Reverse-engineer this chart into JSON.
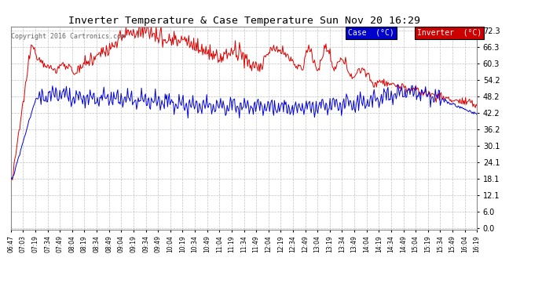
{
  "title": "Inverter Temperature & Case Temperature Sun Nov 20 16:29",
  "copyright": "Copyright 2016 Cartronics.com",
  "background_color": "#ffffff",
  "plot_bg_color": "#ffffff",
  "grid_color": "#bbbbbb",
  "yticks": [
    0.0,
    6.0,
    12.1,
    18.1,
    24.1,
    30.1,
    36.2,
    42.2,
    48.2,
    54.2,
    60.3,
    66.3,
    72.3
  ],
  "ymin": 0.0,
  "ymax": 72.3,
  "case_color": "#0000dd",
  "inverter_color": "#dd0000",
  "legend_case_bg": "#0000cc",
  "legend_inverter_bg": "#cc0000",
  "xtick_labels": [
    "06:47",
    "07:03",
    "07:19",
    "07:34",
    "07:49",
    "08:04",
    "08:19",
    "08:34",
    "08:49",
    "09:04",
    "09:19",
    "09:34",
    "09:49",
    "10:04",
    "10:19",
    "10:34",
    "10:49",
    "11:04",
    "11:19",
    "11:34",
    "11:49",
    "12:04",
    "12:19",
    "12:34",
    "12:49",
    "13:04",
    "13:19",
    "13:34",
    "13:49",
    "14:04",
    "14:19",
    "14:34",
    "14:49",
    "15:04",
    "15:19",
    "15:34",
    "15:49",
    "16:04",
    "16:19"
  ]
}
